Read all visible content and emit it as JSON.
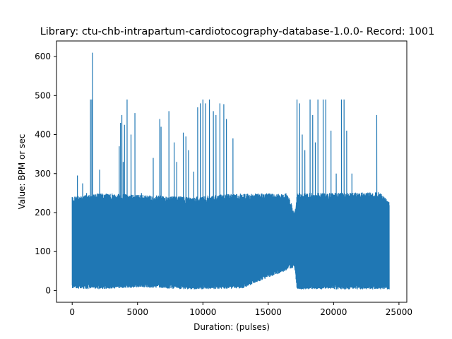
{
  "chart_data": {
    "type": "line",
    "title": "Library: ctu-chb-intrapartum-cardiotocography-database-1.0.0- Record: 1001",
    "xlabel": "Duration: (pulses)",
    "ylabel": "Value: BPM or sec",
    "xlim": [
      -1200,
      25600
    ],
    "ylim": [
      -30,
      640
    ],
    "x_ticks": [
      0,
      5000,
      10000,
      15000,
      20000,
      25000
    ],
    "x_tick_labels": [
      "0",
      "5000",
      "10000",
      "15000",
      "20000",
      "25000"
    ],
    "y_ticks": [
      0,
      100,
      200,
      300,
      400,
      500,
      600
    ],
    "y_tick_labels": [
      "0",
      "100",
      "200",
      "300",
      "400",
      "500",
      "600"
    ],
    "grid": false,
    "series": [
      {
        "color": "#1f77b4",
        "x_start": 0,
        "x_end": 24250,
        "band": [
          [
            0,
            240
          ],
          [
            2000,
            250
          ],
          [
            6000,
            245
          ],
          [
            9000,
            240
          ],
          [
            12000,
            248
          ],
          [
            16500,
            250
          ],
          [
            17000,
            200
          ],
          [
            17200,
            250
          ],
          [
            23500,
            252
          ],
          [
            24250,
            230
          ]
        ],
        "floor": [
          [
            0,
            5
          ],
          [
            2000,
            3
          ],
          [
            5000,
            8
          ],
          [
            9000,
            3
          ],
          [
            13000,
            5
          ],
          [
            17000,
            60
          ],
          [
            17200,
            3
          ],
          [
            24250,
            3
          ]
        ],
        "spikes": [
          [
            130,
            200
          ],
          [
            300,
            240
          ],
          [
            400,
            295
          ],
          [
            700,
            240
          ],
          [
            800,
            275
          ],
          [
            1100,
            250
          ],
          [
            1400,
            490
          ],
          [
            1500,
            490
          ],
          [
            1550,
            610
          ],
          [
            2100,
            310
          ],
          [
            3600,
            370
          ],
          [
            3700,
            430
          ],
          [
            3800,
            450
          ],
          [
            3900,
            330
          ],
          [
            4000,
            425
          ],
          [
            4200,
            490
          ],
          [
            4500,
            400
          ],
          [
            4800,
            455
          ],
          [
            5300,
            250
          ],
          [
            6200,
            340
          ],
          [
            6700,
            440
          ],
          [
            6800,
            420
          ],
          [
            7400,
            460
          ],
          [
            7800,
            380
          ],
          [
            8000,
            330
          ],
          [
            8500,
            405
          ],
          [
            8700,
            395
          ],
          [
            8900,
            360
          ],
          [
            9300,
            305
          ],
          [
            9600,
            470
          ],
          [
            9800,
            480
          ],
          [
            10000,
            490
          ],
          [
            10200,
            480
          ],
          [
            10500,
            490
          ],
          [
            10800,
            460
          ],
          [
            11000,
            450
          ],
          [
            11300,
            480
          ],
          [
            11600,
            478
          ],
          [
            11800,
            440
          ],
          [
            12300,
            390
          ],
          [
            17200,
            490
          ],
          [
            17400,
            480
          ],
          [
            17600,
            400
          ],
          [
            17800,
            360
          ],
          [
            18200,
            490
          ],
          [
            18400,
            450
          ],
          [
            18600,
            380
          ],
          [
            18800,
            490
          ],
          [
            19200,
            490
          ],
          [
            19400,
            490
          ],
          [
            19800,
            410
          ],
          [
            20200,
            300
          ],
          [
            20600,
            490
          ],
          [
            20800,
            490
          ],
          [
            21000,
            410
          ],
          [
            21400,
            300
          ],
          [
            22000,
            245
          ],
          [
            23300,
            450
          ]
        ]
      }
    ]
  }
}
